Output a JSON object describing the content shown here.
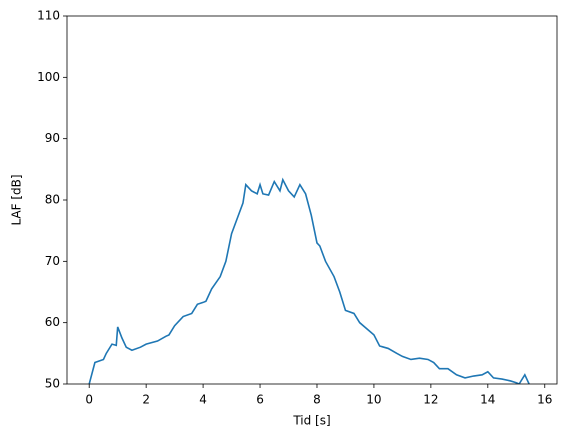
{
  "chart_data": {
    "type": "line",
    "x_label": "Tid [s]",
    "y_label": "LAF [dB]",
    "xlim": [
      -0.78,
      16.43
    ],
    "ylim": [
      50,
      110
    ],
    "xticks": [
      0,
      2,
      4,
      6,
      8,
      10,
      12,
      14,
      16
    ],
    "yticks": [
      50,
      60,
      70,
      80,
      90,
      100,
      110
    ],
    "series": [
      {
        "color": "#1f77b4",
        "x": [
          0,
          0.2,
          0.5,
          0.6,
          0.8,
          0.95,
          1.0,
          1.15,
          1.3,
          1.5,
          1.8,
          2.0,
          2.4,
          2.7,
          2.8,
          3.0,
          3.3,
          3.6,
          3.8,
          4.0,
          4.1,
          4.3,
          4.6,
          4.8,
          5.0,
          5.2,
          5.4,
          5.5,
          5.7,
          5.9,
          6.0,
          6.1,
          6.3,
          6.5,
          6.7,
          6.8,
          7.0,
          7.2,
          7.4,
          7.6,
          7.8,
          8.0,
          8.1,
          8.3,
          8.6,
          8.8,
          9.0,
          9.3,
          9.5,
          9.8,
          10.0,
          10.2,
          10.5,
          10.8,
          11.0,
          11.3,
          11.6,
          11.9,
          12.1,
          12.3,
          12.6,
          12.9,
          13.2,
          13.5,
          13.8,
          14.0,
          14.2,
          14.5,
          14.8,
          15.0,
          15.1,
          15.3,
          15.45
        ],
        "values": [
          50,
          53.5,
          54,
          55,
          56.5,
          56.3,
          59.3,
          57.5,
          56,
          55.5,
          56,
          56.5,
          57,
          57.8,
          58,
          59.5,
          61,
          61.5,
          63,
          63.3,
          63.5,
          65.5,
          67.5,
          70,
          74.5,
          77,
          79.5,
          82.5,
          81.5,
          81,
          82.5,
          81,
          80.8,
          83,
          81.5,
          83.3,
          81.5,
          80.5,
          82.5,
          81,
          77.5,
          73,
          72.5,
          70,
          67.5,
          65,
          62,
          61.5,
          60,
          58.8,
          58,
          56.2,
          55.8,
          55,
          54.5,
          54,
          54.2,
          54,
          53.5,
          52.5,
          52.5,
          51.5,
          51,
          51.3,
          51.5,
          52,
          51,
          50.8,
          50.5,
          50.2,
          50,
          51.5,
          50
        ]
      }
    ]
  }
}
